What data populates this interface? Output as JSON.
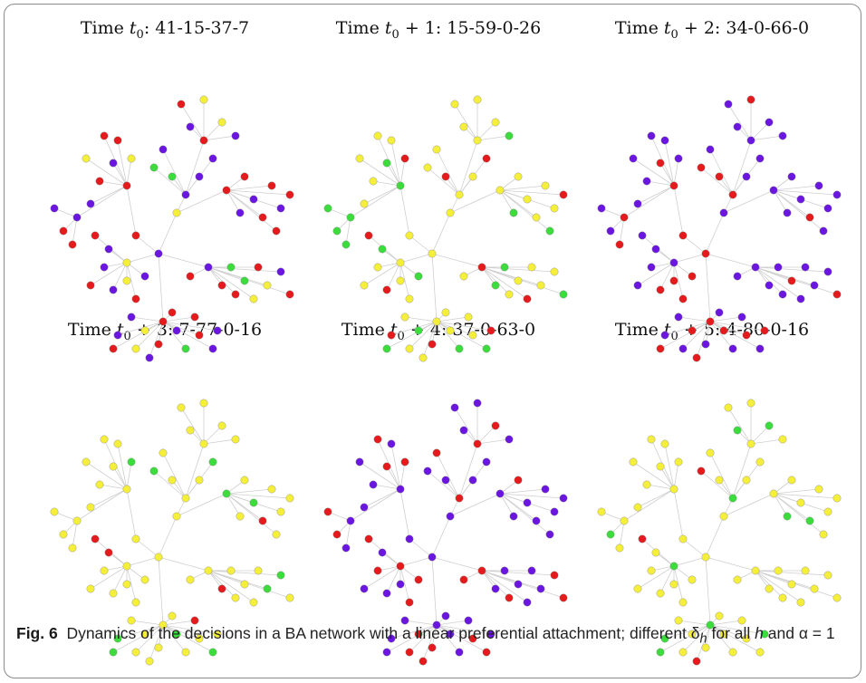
{
  "figure": {
    "panels": [
      {
        "label_prefix": "Time ",
        "label_time": "t",
        "label_sub": "0",
        "label_suffix": ": 41-15-37-7"
      },
      {
        "label_prefix": "Time ",
        "label_time": "t",
        "label_sub": "0",
        "label_suffix": " + 1: 15-59-0-26"
      },
      {
        "label_prefix": "Time ",
        "label_time": "t",
        "label_sub": "0",
        "label_suffix": " + 2: 34-0-66-0"
      },
      {
        "label_prefix": "Time ",
        "label_time": "t",
        "label_sub": "0",
        "label_suffix": " + 3: 7-77-0-16"
      },
      {
        "label_prefix": "Time ",
        "label_time": "t",
        "label_sub": "0",
        "label_suffix": " + 4: 37-0-63-0"
      },
      {
        "label_prefix": "Time ",
        "label_time": "t",
        "label_sub": "0",
        "label_suffix": " + 5: 4-80-0-16"
      }
    ],
    "caption_label": "Fig. 6",
    "caption_text": "Dynamics of the decisions in a BA network with a linear preferential attachment; different δ",
    "caption_sub": "h",
    "caption_text2": " for all ",
    "caption_h": "h",
    "caption_text3": " and α = 1"
  },
  "colors": {
    "red": "#e41a1c",
    "yellow": "#f5ef3a",
    "green": "#3bdc3b",
    "blue": "#6a16e0",
    "edge": "#cfcfcf"
  }
}
